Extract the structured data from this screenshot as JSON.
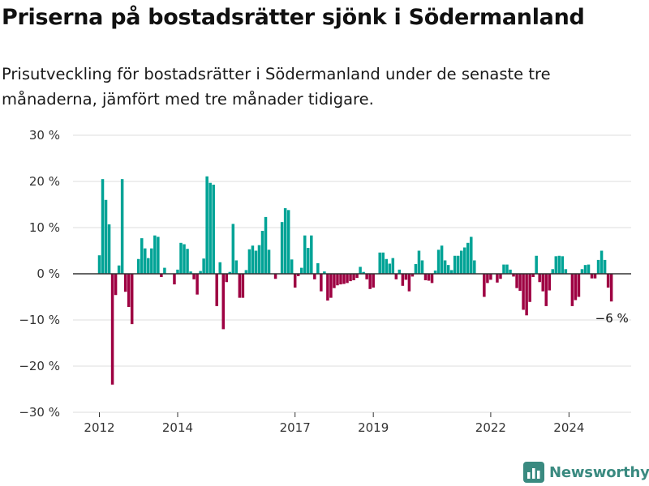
{
  "title": "Priserna på bostadsrätter sjönk i Södermanland",
  "subtitle": "Prisutveckling för bostadsrätter i Södermanland under de senaste tre månaderna, jämfört med tre månader tidigare.",
  "brand": "Newsworthy",
  "colors": {
    "positive": "#00a396",
    "negative": "#9e0142",
    "zero_line": "#333333",
    "grid": "#dddddd"
  },
  "chart_data": {
    "type": "bar",
    "ylim": [
      -30,
      30
    ],
    "yticks": [
      30,
      20,
      10,
      0,
      -10,
      -20,
      -30
    ],
    "ytick_labels": [
      "30 %",
      "20 %",
      "10 %",
      "0 %",
      "−10 %",
      "−20 %",
      "−30 %"
    ],
    "xticks": [
      {
        "label": "2012",
        "index": 0
      },
      {
        "label": "2014",
        "index": 24
      },
      {
        "label": "2017",
        "index": 60
      },
      {
        "label": "2019",
        "index": 84
      },
      {
        "label": "2022",
        "index": 120
      },
      {
        "label": "2024",
        "index": 144
      }
    ],
    "last_value_label": "−6 %",
    "values": [
      4,
      20.5,
      16,
      10.7,
      -24,
      -4.6,
      1.8,
      20.5,
      -3.9,
      -7.2,
      -10.9,
      0,
      3.2,
      7.7,
      5.5,
      3.4,
      5.5,
      8.3,
      8,
      -0.7,
      1.3,
      0,
      0,
      -2.3,
      0.9,
      6.7,
      6.4,
      5.4,
      0.5,
      -1.2,
      -4.5,
      0.6,
      3.3,
      21.1,
      19.7,
      19.3,
      -7,
      2.5,
      -12,
      -1.8,
      0.4,
      10.8,
      2.9,
      -5.2,
      -5.2,
      0.8,
      5.3,
      6.1,
      5,
      6.2,
      9.3,
      12.3,
      5.2,
      0,
      -1.1,
      0,
      11.2,
      14.2,
      13.8,
      3.1,
      -3,
      -0.5,
      1.3,
      8.3,
      5.6,
      8.3,
      -1.2,
      2.3,
      -3.8,
      0.5,
      -5.8,
      -5.2,
      -3.1,
      -2.5,
      -2.3,
      -2.2,
      -2,
      -1.6,
      -1.4,
      -0.9,
      1.5,
      0.4,
      -1.2,
      -3.3,
      -3,
      0,
      4.6,
      4.6,
      3.2,
      2.2,
      3.4,
      -1.2,
      0.9,
      -2.6,
      -1.3,
      -3.8,
      -0.6,
      2.1,
      5,
      2.9,
      -1.4,
      -1.5,
      -2,
      0.7,
      5.2,
      6.1,
      2.9,
      1.9,
      0.8,
      3.9,
      3.9,
      5,
      5.7,
      6.7,
      8,
      2.9,
      0,
      0,
      -5,
      -2,
      -1.3,
      0,
      -1.9,
      -1.1,
      2,
      2,
      0.9,
      -0.6,
      -3.1,
      -3.7,
      -7.8,
      -9,
      -6.1,
      -0.7,
      3.9,
      -1.8,
      -3.8,
      -7,
      -3.6,
      1,
      3.8,
      3.9,
      3.8,
      1,
      0,
      -7,
      -5.7,
      -5,
      1,
      1.9,
      2,
      -1,
      -1,
      3,
      5,
      3,
      -3,
      -6
    ]
  }
}
